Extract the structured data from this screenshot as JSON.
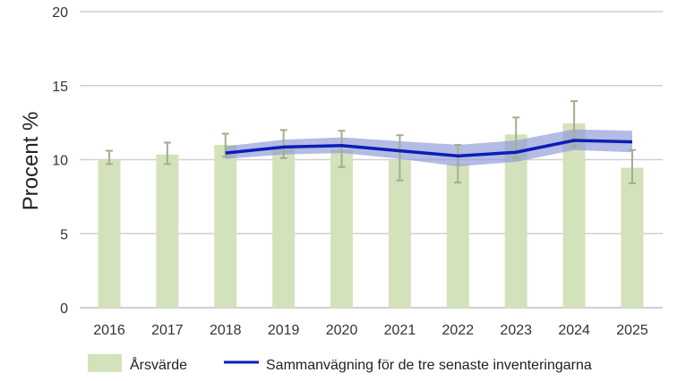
{
  "chart_data": {
    "type": "bar",
    "title": "",
    "xlabel": "",
    "ylabel": "Procent %",
    "ylim": [
      0,
      20
    ],
    "yticks": [
      "0",
      "5",
      "10",
      "15",
      "20"
    ],
    "grid": true,
    "legend_position": "bottom",
    "categories": [
      "2016",
      "2017",
      "2018",
      "2019",
      "2020",
      "2021",
      "2022",
      "2023",
      "2024",
      "2025"
    ],
    "series": [
      {
        "name": "Årsvärde",
        "kind": "bar",
        "color": "#d4e2bc",
        "values": [
          10.0,
          10.35,
          11.0,
          10.95,
          10.65,
          9.95,
          9.7,
          11.7,
          12.45,
          9.45
        ],
        "error_low": [
          9.7,
          9.7,
          10.2,
          10.1,
          9.5,
          8.6,
          8.45,
          10.1,
          10.9,
          8.4
        ],
        "error_high": [
          10.6,
          11.15,
          11.75,
          12.0,
          11.95,
          11.65,
          11.0,
          12.85,
          13.95,
          10.65
        ],
        "error_color": "#a4ad8e"
      },
      {
        "name": "Sammanvägning för de tre senaste inventeringarna",
        "kind": "line",
        "color": "#0a1eb4",
        "band_color": "#8c96d6",
        "values": [
          null,
          null,
          10.45,
          10.85,
          10.95,
          10.6,
          10.25,
          10.5,
          11.3,
          11.2
        ],
        "band_low": [
          null,
          null,
          10.05,
          10.35,
          10.45,
          10.05,
          9.55,
          9.85,
          10.65,
          10.5
        ],
        "band_high": [
          null,
          null,
          10.9,
          11.35,
          11.5,
          11.25,
          11.0,
          11.3,
          12.05,
          11.95
        ]
      }
    ]
  }
}
